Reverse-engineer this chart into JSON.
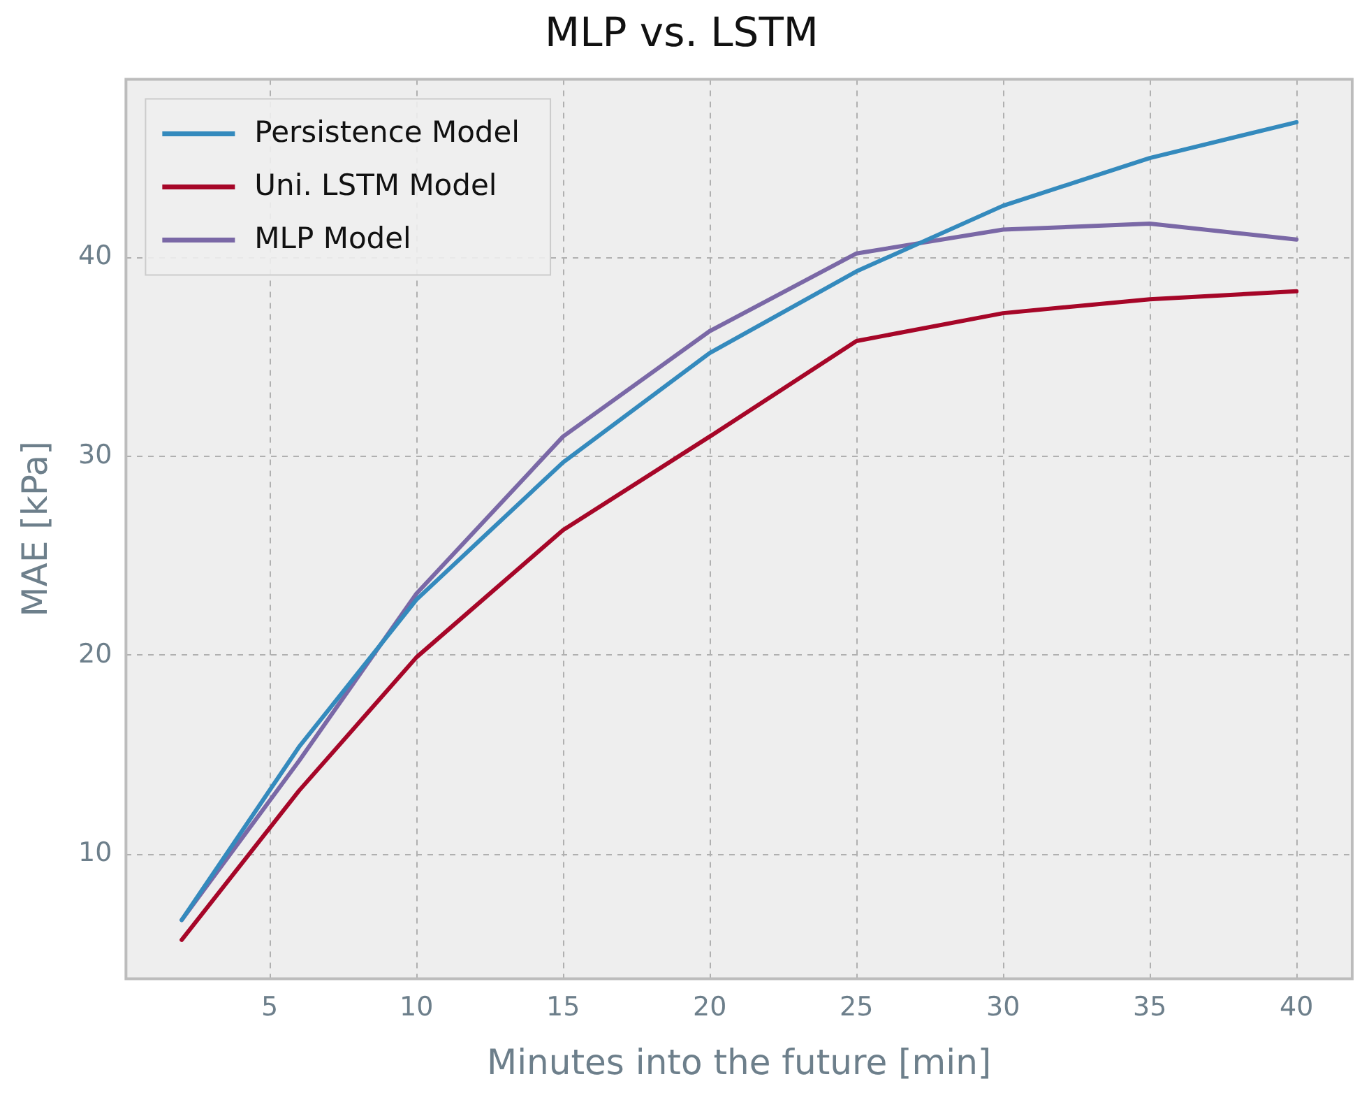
{
  "chart_data": {
    "type": "line",
    "title": "MLP vs. LSTM",
    "xlabel": "Minutes into the future [min]",
    "ylabel": "MAE [kPa]",
    "x": [
      2,
      6,
      10,
      15,
      20,
      25,
      30,
      35,
      40
    ],
    "series": [
      {
        "name": "Persistence Model",
        "color": "#348abd",
        "values": [
          6.7,
          15.4,
          22.8,
          29.7,
          35.2,
          39.3,
          42.6,
          45.0,
          46.8
        ]
      },
      {
        "name": "Uni. LSTM Model",
        "color": "#a60628",
        "values": [
          5.7,
          13.2,
          19.9,
          26.3,
          31.0,
          35.8,
          37.2,
          37.9,
          38.3
        ]
      },
      {
        "name": "MLP Model",
        "color": "#7a68a6",
        "values": [
          6.7,
          14.7,
          23.1,
          31.0,
          36.3,
          40.2,
          41.4,
          41.7,
          40.9
        ]
      }
    ],
    "xlim": [
      0.1,
      41.9
    ],
    "ylim": [
      3.75,
      48.95
    ],
    "xticks": [
      5,
      10,
      15,
      20,
      25,
      30,
      35,
      40
    ],
    "yticks": [
      10,
      20,
      30,
      40
    ],
    "grid": true,
    "legend": "top left",
    "marker": "none",
    "line_style": "solid"
  }
}
